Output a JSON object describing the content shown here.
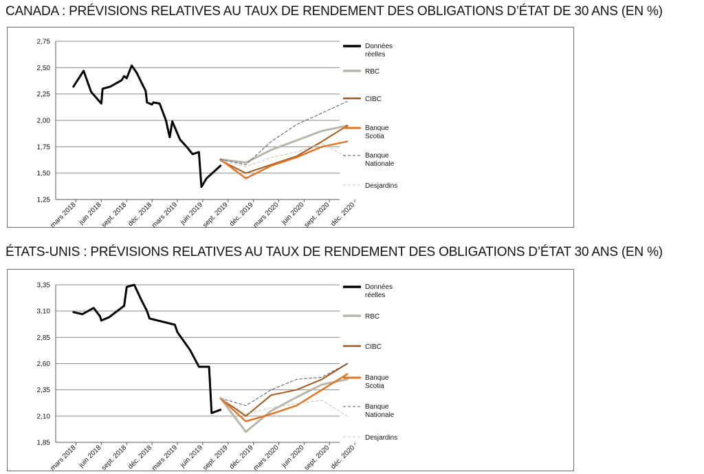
{
  "chart_data": [
    {
      "type": "line",
      "title": "CANADA : PRÉVISIONS RELATIVES AU TAUX DE RENDEMENT DES OBLIGATIONS D’ÉTAT DE 30 ANS (EN %)",
      "xlabel": "",
      "ylabel": "",
      "ylim": [
        1.25,
        2.75
      ],
      "yticks": [
        "1,25",
        "1,50",
        "1,75",
        "2,00",
        "2,25",
        "2,50",
        "2,75"
      ],
      "yticks_values": [
        1.25,
        1.5,
        1.75,
        2.0,
        2.25,
        2.5,
        2.75
      ],
      "xticks": [
        "mars 2018",
        "juin 2018",
        "sept. 2018",
        "déc. 2018",
        "mars 2019",
        "juin 2019",
        "sept. 2019",
        "déc. 2019",
        "mars 2020",
        "juin 2020",
        "sept. 2020",
        "déc. 2020"
      ],
      "grid": true,
      "legend_position": "right",
      "series": [
        {
          "name": "Données réelles",
          "color": "#000000",
          "style": "solid",
          "width": 3,
          "x": [
            -0.1,
            0.3,
            0.6,
            1.0,
            1.05,
            1.35,
            1.8,
            1.9,
            2.0,
            2.2,
            2.4,
            2.6,
            2.75,
            2.8,
            3.0,
            3.05,
            3.3,
            3.55,
            3.65,
            3.7,
            3.8,
            4.1,
            4.4,
            4.6,
            4.85,
            4.95,
            5.15,
            5.7
          ],
          "y": [
            2.32,
            2.47,
            2.27,
            2.16,
            2.3,
            2.32,
            2.38,
            2.42,
            2.4,
            2.52,
            2.45,
            2.35,
            2.28,
            2.17,
            2.15,
            2.17,
            2.16,
            2.0,
            1.89,
            1.84,
            1.99,
            1.82,
            1.74,
            1.68,
            1.7,
            1.37,
            1.45,
            1.57
          ]
        },
        {
          "name": "RBC",
          "color": "#b9b5a9",
          "style": "solid",
          "width": 3,
          "x": [
            5.7,
            6.7,
            7.7,
            8.7,
            9.7,
            10.7
          ],
          "y": [
            1.63,
            1.6,
            1.72,
            1.81,
            1.9,
            1.95
          ]
        },
        {
          "name": "CIBC",
          "color": "#a4561b",
          "style": "solid",
          "width": 2,
          "x": [
            5.7,
            6.7,
            7.7,
            8.7,
            9.7,
            10.7
          ],
          "y": [
            1.62,
            1.5,
            1.58,
            1.66,
            1.8,
            1.95
          ]
        },
        {
          "name": "Banque Scotia",
          "color": "#e07425",
          "style": "solid",
          "width": 2.5,
          "x": [
            5.7,
            6.7,
            7.7,
            8.7,
            9.7,
            10.7
          ],
          "y": [
            1.63,
            1.45,
            1.57,
            1.65,
            1.75,
            1.8
          ]
        },
        {
          "name": "Banque Nationale",
          "color": "#555566",
          "style": "dashed",
          "width": 1,
          "x": [
            5.7,
            6.7,
            7.7,
            8.7,
            9.7,
            10.7
          ],
          "y": [
            1.63,
            1.58,
            1.8,
            1.96,
            2.07,
            2.18
          ]
        },
        {
          "name": "Desjardins",
          "color": "#c9c3ae",
          "style": "dashed",
          "width": 1,
          "x": [
            5.7,
            6.7,
            7.7,
            8.7,
            9.7,
            10.7
          ],
          "y": [
            1.62,
            1.56,
            1.65,
            1.7,
            1.78,
            1.65
          ]
        }
      ]
    },
    {
      "type": "line",
      "title": "ÉTATS-UNIS : PRÉVISIONS RELATIVES AU TAUX DE RENDEMENT DES OBLIGATIONS D’ÉTAT 30 ANS (EN %)",
      "xlabel": "",
      "ylabel": "",
      "ylim": [
        1.85,
        3.35
      ],
      "yticks": [
        "1,85",
        "2,10",
        "2,35",
        "2,60",
        "2,85",
        "3,10",
        "3,35"
      ],
      "yticks_values": [
        1.85,
        2.1,
        2.35,
        2.6,
        2.85,
        3.1,
        3.35
      ],
      "xticks": [
        "mars 2018",
        "juin 2018",
        "sept. 2018",
        "déc. 2018",
        "mars 2019",
        "juin 2019",
        "sept. 2019",
        "déc. 2019",
        "mars 2020",
        "juin 2020",
        "sept. 2020",
        "déc. 2020"
      ],
      "grid": true,
      "legend_position": "right",
      "series": [
        {
          "name": "Données réelles",
          "color": "#000000",
          "style": "solid",
          "width": 3,
          "x": [
            -0.1,
            0.25,
            0.7,
            0.95,
            1.0,
            1.3,
            1.9,
            2.0,
            2.3,
            2.55,
            2.8,
            2.9,
            3.9,
            4.0,
            4.5,
            4.85,
            5.25,
            5.35,
            5.7
          ],
          "y": [
            3.09,
            3.07,
            3.13,
            3.05,
            3.01,
            3.04,
            3.15,
            3.33,
            3.35,
            3.22,
            3.1,
            3.03,
            2.97,
            2.9,
            2.73,
            2.57,
            2.57,
            2.13,
            2.16
          ]
        },
        {
          "name": "RBC",
          "color": "#b9b5a9",
          "style": "solid",
          "width": 3,
          "x": [
            5.7,
            6.7,
            7.7,
            8.7,
            9.7,
            10.7
          ],
          "y": [
            2.27,
            1.95,
            2.15,
            2.28,
            2.4,
            2.45
          ]
        },
        {
          "name": "CIBC",
          "color": "#a4561b",
          "style": "solid",
          "width": 2,
          "x": [
            5.7,
            6.7,
            7.7,
            8.7,
            9.7,
            10.7
          ],
          "y": [
            2.27,
            2.1,
            2.3,
            2.35,
            2.45,
            2.6
          ]
        },
        {
          "name": "Banque Scotia",
          "color": "#e07425",
          "style": "solid",
          "width": 2.5,
          "x": [
            5.7,
            6.7,
            7.7,
            8.7,
            9.7,
            10.7
          ],
          "y": [
            2.27,
            2.05,
            2.12,
            2.2,
            2.35,
            2.5
          ]
        },
        {
          "name": "Banque Nationale",
          "color": "#555566",
          "style": "dashed",
          "width": 1,
          "x": [
            5.7,
            6.7,
            7.7,
            8.7,
            9.7,
            10.7
          ],
          "y": [
            2.27,
            2.2,
            2.35,
            2.45,
            2.47,
            2.6
          ]
        },
        {
          "name": "Desjardins",
          "color": "#c9c3ae",
          "style": "dashed",
          "width": 1,
          "x": [
            5.7,
            6.7,
            7.7,
            8.7,
            9.7,
            10.7
          ],
          "y": [
            2.27,
            2.12,
            2.18,
            2.22,
            2.25,
            2.1
          ]
        }
      ]
    }
  ]
}
